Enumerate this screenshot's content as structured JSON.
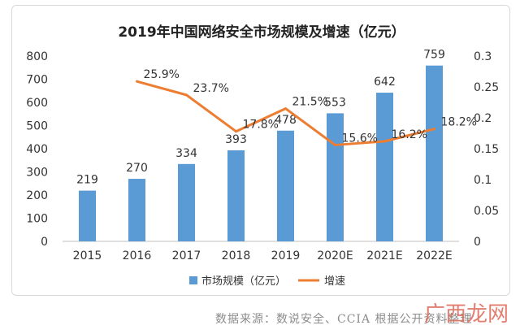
{
  "chart_data": {
    "type": "bar+line",
    "title": "2019年中国网络安全市场规模及增速（亿元）",
    "categories": [
      "2015",
      "2016",
      "2017",
      "2018",
      "2019",
      "2020E",
      "2021E",
      "2022E"
    ],
    "series": [
      {
        "name": "市场规模（亿元）",
        "type": "bar",
        "axis": "left",
        "color": "#5b9bd5",
        "values": [
          219,
          270,
          334,
          393,
          478,
          553,
          642,
          759
        ],
        "labels": [
          "219",
          "270",
          "334",
          "393",
          "478",
          "553",
          "642",
          "759"
        ]
      },
      {
        "name": "增速",
        "type": "line",
        "axis": "right",
        "color": "#ed7d31",
        "values": [
          null,
          0.259,
          0.237,
          0.178,
          0.215,
          0.156,
          0.162,
          0.182
        ],
        "labels": [
          null,
          "25.9%",
          "23.7%",
          "17.8%",
          "21.5%",
          "15.6%",
          "16.2%",
          "18.2%"
        ]
      }
    ],
    "y_left": {
      "min": 0,
      "max": 800,
      "ticks": [
        "0",
        "100",
        "200",
        "300",
        "400",
        "500",
        "600",
        "700",
        "800"
      ]
    },
    "y_right": {
      "min": 0,
      "max": 0.3,
      "ticks": [
        "0",
        "0.05",
        "0.1",
        "0.15",
        "0.2",
        "0.25",
        "0.3"
      ]
    },
    "grid": false,
    "legend_position": "bottom"
  },
  "footer": {
    "source": "数据来源：数说安全、CCIA 根据公开资料整理",
    "watermark": "广西龙网"
  }
}
